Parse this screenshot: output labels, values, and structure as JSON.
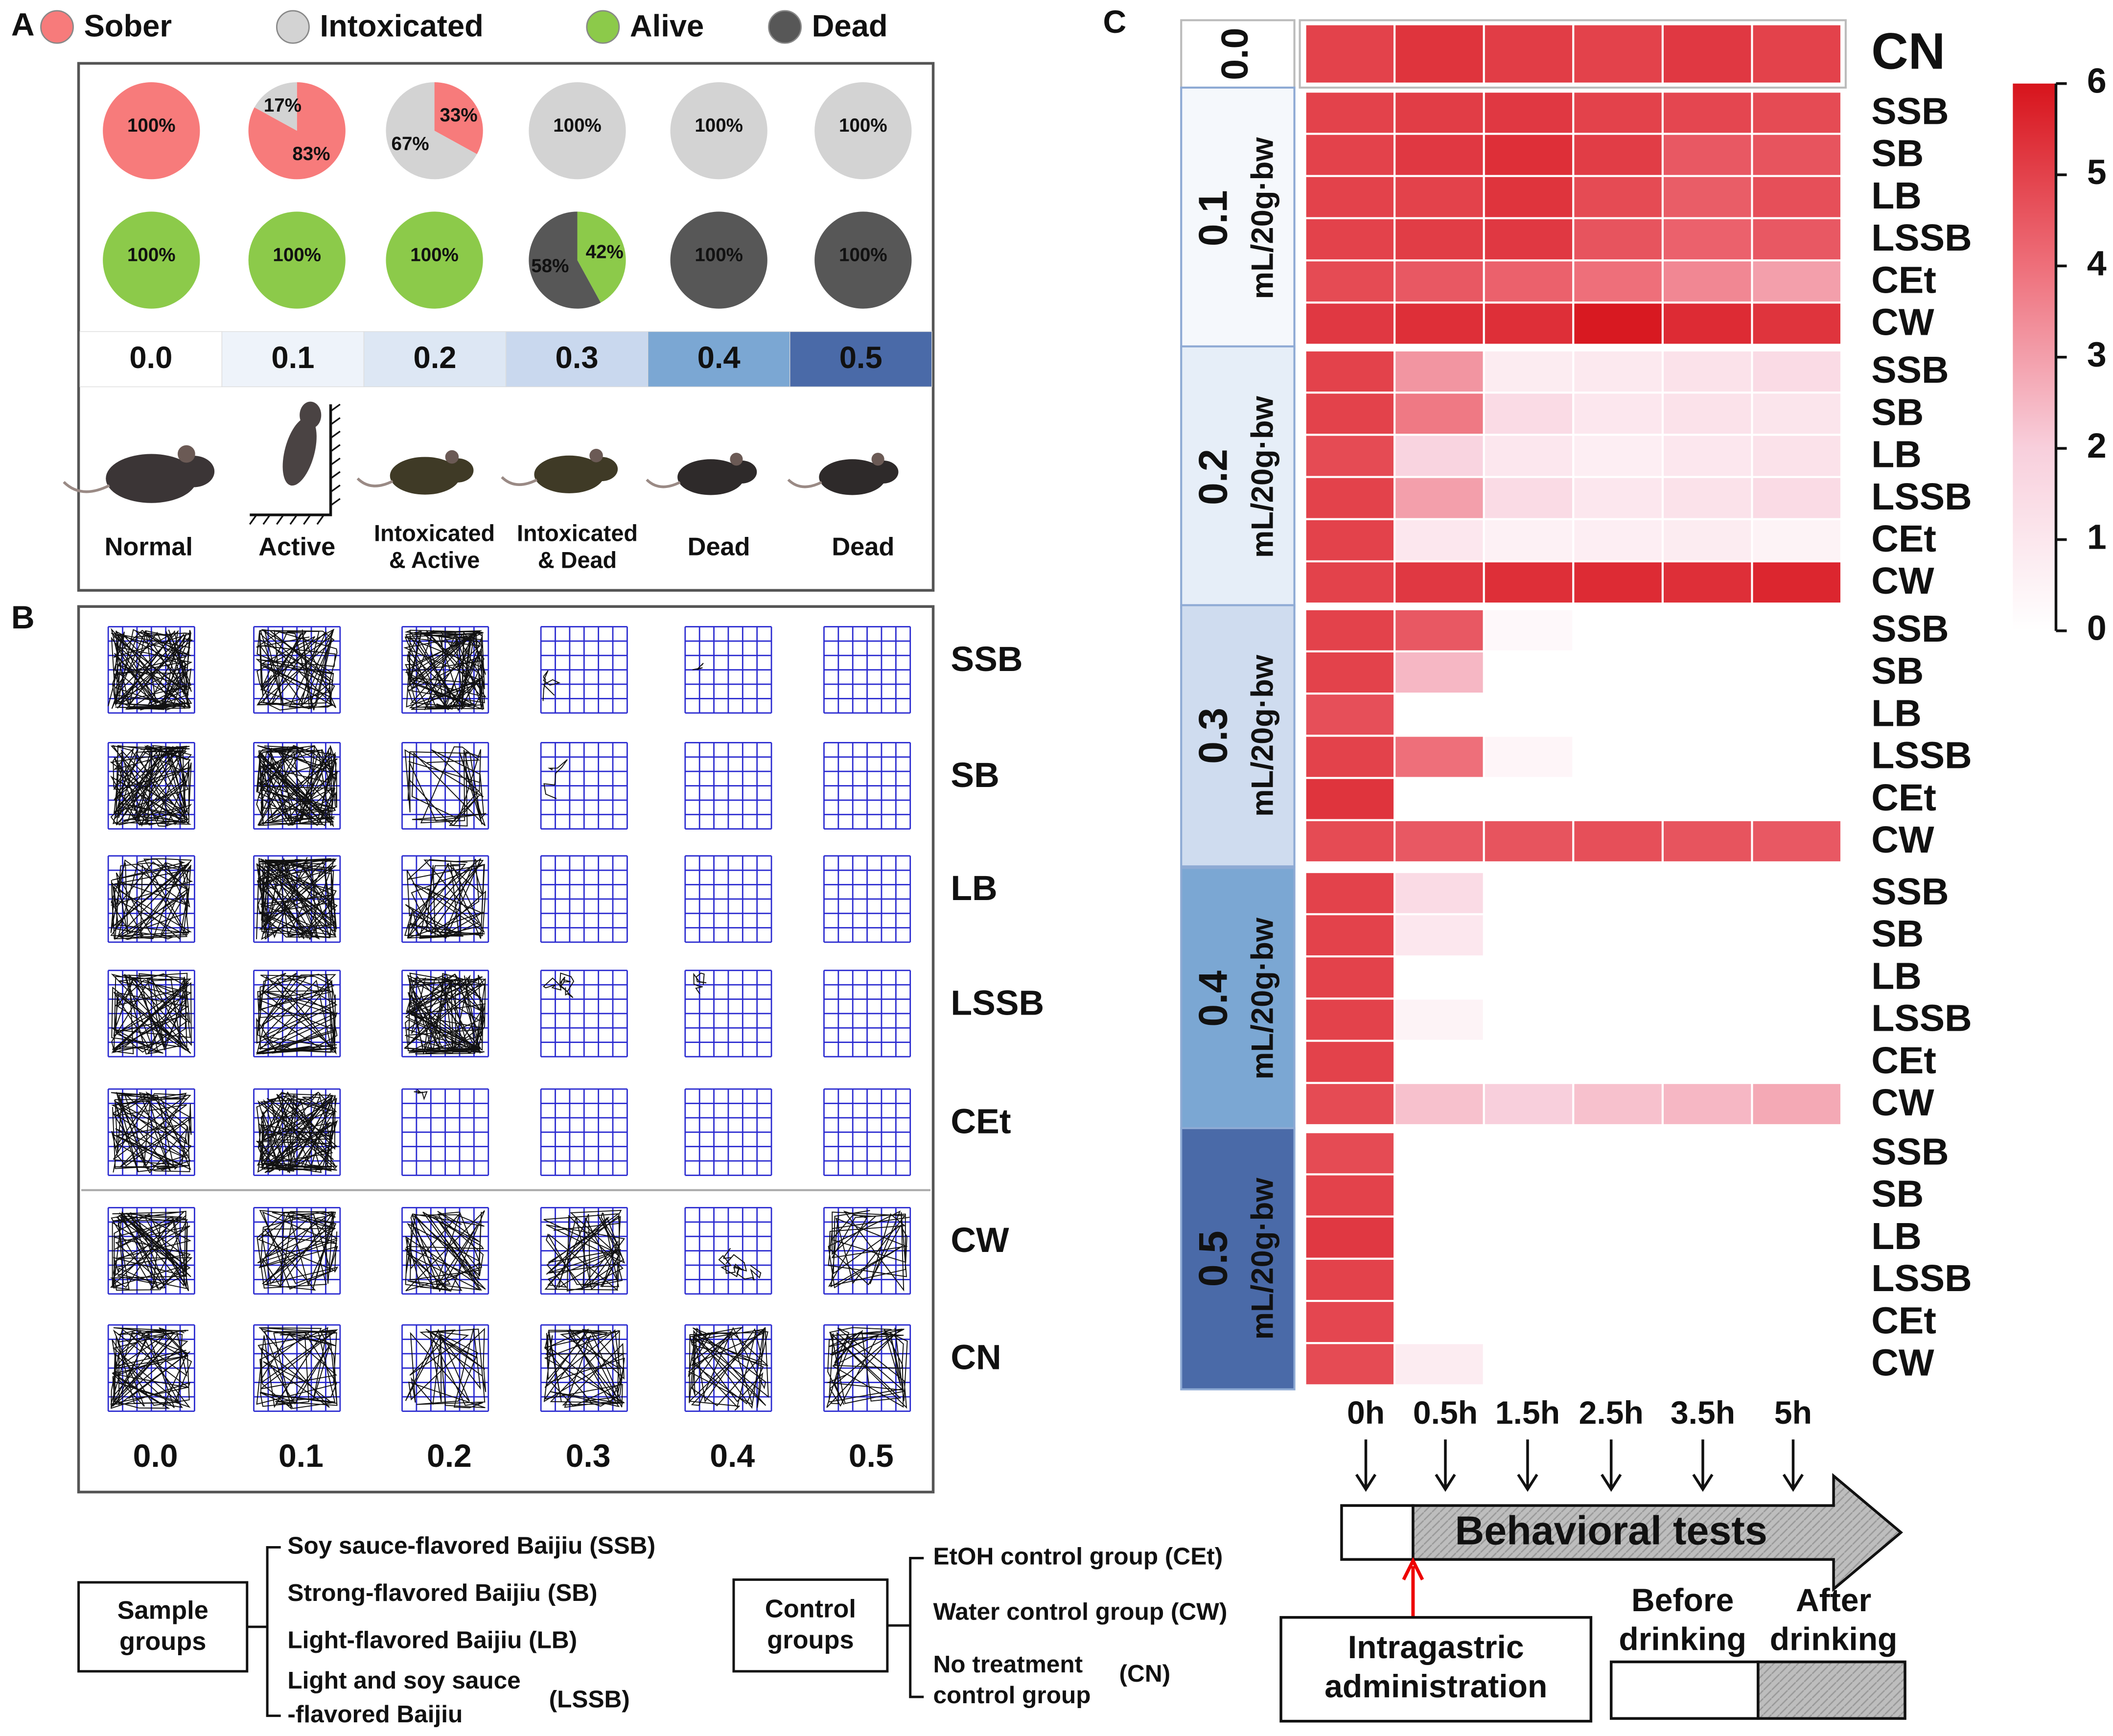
{
  "panel_a": {
    "label": "A",
    "legend": [
      {
        "label": "Sober",
        "color": "#f77b7b"
      },
      {
        "label": "Intoxicated",
        "color": "#d3d3d3"
      },
      {
        "label": "Alive",
        "color": "#8cca4a"
      },
      {
        "label": "Dead",
        "color": "#575757"
      }
    ],
    "pie_rows": [
      [
        [
          {
            "value": 100,
            "label": "100%",
            "color": "#f77b7b",
            "label_color": "#c00000"
          }
        ],
        [
          {
            "value": 83,
            "label": "83%",
            "color": "#f77b7b",
            "label_color": "#c00000"
          },
          {
            "value": 17,
            "label": "17%",
            "color": "#d3d3d3",
            "label_color": "#2e5597"
          }
        ],
        [
          {
            "value": 33,
            "label": "33%",
            "color": "#f77b7b",
            "label_color": "#c00000"
          },
          {
            "value": 67,
            "label": "67%",
            "color": "#d3d3d3",
            "label_color": "#2e5597"
          }
        ],
        [
          {
            "value": 100,
            "label": "100%",
            "color": "#d3d3d3",
            "label_color": "#2e5597"
          }
        ],
        [
          {
            "value": 100,
            "label": "100%",
            "color": "#d3d3d3",
            "label_color": "#2e5597"
          }
        ],
        [
          {
            "value": 100,
            "label": "100%",
            "color": "#d3d3d3",
            "label_color": "#2e5597"
          }
        ]
      ],
      [
        [
          {
            "value": 100,
            "label": "100%",
            "color": "#8cca4a",
            "label_color": "#333333"
          }
        ],
        [
          {
            "value": 100,
            "label": "100%",
            "color": "#8cca4a",
            "label_color": "#333333"
          }
        ],
        [
          {
            "value": 100,
            "label": "100%",
            "color": "#8cca4a",
            "label_color": "#333333"
          }
        ],
        [
          {
            "value": 42,
            "label": "42%",
            "color": "#8cca4a",
            "label_color": "#333333"
          },
          {
            "value": 58,
            "label": "58%",
            "color": "#575757",
            "label_color": "#ffffff"
          }
        ],
        [
          {
            "value": 100,
            "label": "100%",
            "color": "#575757",
            "label_color": "#ffffff"
          }
        ],
        [
          {
            "value": 100,
            "label": "100%",
            "color": "#575757",
            "label_color": "#ffffff"
          }
        ]
      ]
    ],
    "doses": [
      "0.0",
      "0.1",
      "0.2",
      "0.3",
      "0.4",
      "0.5"
    ],
    "dose_colors": [
      "#ffffff",
      "#eef3fa",
      "#dde7f4",
      "#c9d8ee",
      "#7ba7d3",
      "#4a6aa8"
    ],
    "animal_states": [
      [
        "Normal"
      ],
      [
        "Active"
      ],
      [
        "Intoxicated",
        "& Active"
      ],
      [
        "Intoxicated",
        "& Dead"
      ],
      [
        "Dead"
      ],
      [
        "Dead"
      ]
    ]
  },
  "panel_b": {
    "label": "B",
    "rows": [
      "SSB",
      "SB",
      "LB",
      "LSSB",
      "CEt",
      "CW",
      "CN"
    ],
    "doses": [
      "0.0",
      "0.1",
      "0.2",
      "0.3",
      "0.4",
      "0.5"
    ],
    "grid_color": "#2a2ad0"
  },
  "panel_c": {
    "label": "C",
    "times": [
      "0h",
      "0.5h",
      "1.5h",
      "2.5h",
      "3.5h",
      "5h"
    ],
    "groups": [
      {
        "dose": "0.0",
        "fill": "#ffffff",
        "rows": [
          {
            "name": "CN",
            "color": "#1f3864",
            "values": [
              5,
              5.3,
              5.1,
              5,
              5.2,
              5
            ]
          }
        ]
      },
      {
        "dose": "0.1",
        "unit": "mL/20g·bw",
        "fill": "#f5f8fc",
        "rows": [
          {
            "name": "SSB",
            "color": "#c00000",
            "values": [
              5,
              5.1,
              5.2,
              5,
              4.9,
              4.8
            ]
          },
          {
            "name": "SB",
            "color": "#c00000",
            "values": [
              5,
              5.2,
              5.4,
              5.1,
              4.5,
              4.6
            ]
          },
          {
            "name": "LB",
            "color": "#c00000",
            "values": [
              5,
              5,
              5.3,
              4.8,
              4.4,
              4.7
            ]
          },
          {
            "name": "LSSB",
            "color": "#c00000",
            "values": [
              5,
              5.1,
              5.2,
              4.6,
              4.3,
              4.5
            ]
          },
          {
            "name": "CEt",
            "color": "#1f3864",
            "values": [
              4.8,
              4.5,
              4.3,
              4,
              3.5,
              3
            ]
          },
          {
            "name": "CW",
            "color": "#1f3864",
            "values": [
              5.2,
              5.4,
              5.4,
              5.9,
              5.5,
              5.3
            ]
          }
        ]
      },
      {
        "dose": "0.2",
        "unit": "mL/20g·bw",
        "fill": "#e6eef8",
        "rows": [
          {
            "name": "SSB",
            "color": "#c00000",
            "values": [
              5,
              3.2,
              0.8,
              0.9,
              1.2,
              1.5
            ]
          },
          {
            "name": "SB",
            "color": "#c00000",
            "values": [
              5,
              3.8,
              1.5,
              1,
              1.2,
              1.1
            ]
          },
          {
            "name": "LB",
            "color": "#c00000",
            "values": [
              4.8,
              1.8,
              1,
              0.7,
              1,
              1.2
            ]
          },
          {
            "name": "LSSB",
            "color": "#c00000",
            "values": [
              5,
              3,
              1.5,
              1,
              1.2,
              1.5
            ]
          },
          {
            "name": "CEt",
            "color": "#1f3864",
            "values": [
              5,
              1,
              0.6,
              0.7,
              0.8,
              0.5
            ]
          },
          {
            "name": "CW",
            "color": "#1f3864",
            "values": [
              5,
              5.2,
              5.4,
              5.5,
              5.4,
              5.6
            ]
          }
        ]
      },
      {
        "dose": "0.3",
        "unit": "mL/20g·bw",
        "fill": "#cfdcef",
        "rows": [
          {
            "name": "SSB",
            "color": "#c00000",
            "values": [
              5,
              4.5,
              0.3,
              null,
              null,
              null
            ]
          },
          {
            "name": "SB",
            "color": "#c00000",
            "values": [
              5,
              2.5,
              null,
              null,
              null,
              null
            ]
          },
          {
            "name": "LB",
            "color": "#c00000",
            "values": [
              4.7,
              null,
              null,
              null,
              null,
              null
            ]
          },
          {
            "name": "LSSB",
            "color": "#c00000",
            "values": [
              5,
              4,
              0.4,
              null,
              null,
              null
            ]
          },
          {
            "name": "CEt",
            "color": "#1f3864",
            "values": [
              5.3,
              null,
              null,
              null,
              null,
              null
            ]
          },
          {
            "name": "CW",
            "color": "#1f3864",
            "values": [
              4.8,
              4.5,
              4.6,
              4.7,
              4.6,
              4.5
            ]
          }
        ]
      },
      {
        "dose": "0.4",
        "unit": "mL/20g·bw",
        "fill": "#7ba7d3",
        "rows": [
          {
            "name": "SSB",
            "color": "#c00000",
            "values": [
              5,
              1.5,
              null,
              null,
              null,
              null
            ]
          },
          {
            "name": "SB",
            "color": "#c00000",
            "values": [
              5,
              1,
              null,
              null,
              null,
              null
            ]
          },
          {
            "name": "LB",
            "color": "#c00000",
            "values": [
              5,
              null,
              null,
              null,
              null,
              null
            ]
          },
          {
            "name": "LSSB",
            "color": "#c00000",
            "values": [
              5,
              0.5,
              null,
              null,
              null,
              null
            ]
          },
          {
            "name": "CEt",
            "color": "#1f3864",
            "values": [
              5,
              null,
              null,
              null,
              null,
              null
            ]
          },
          {
            "name": "CW",
            "color": "#1f3864",
            "values": [
              4.8,
              2.3,
              2,
              2.3,
              2.5,
              2.8
            ]
          }
        ]
      },
      {
        "dose": "0.5",
        "unit": "mL/20g·bw",
        "fill": "#4a6aa8",
        "rows": [
          {
            "name": "SSB",
            "color": "#c00000",
            "values": [
              4.8,
              null,
              null,
              null,
              null,
              null
            ]
          },
          {
            "name": "SB",
            "color": "#c00000",
            "values": [
              5,
              null,
              null,
              null,
              null,
              null
            ]
          },
          {
            "name": "LB",
            "color": "#c00000",
            "values": [
              5.2,
              null,
              null,
              null,
              null,
              null
            ]
          },
          {
            "name": "LSSB",
            "color": "#c00000",
            "values": [
              5,
              null,
              null,
              null,
              null,
              null
            ]
          },
          {
            "name": "CEt",
            "color": "#1f3864",
            "values": [
              4.9,
              null,
              null,
              null,
              null,
              null
            ]
          },
          {
            "name": "CW",
            "color": "#1f3864",
            "values": [
              4.8,
              0.8,
              null,
              null,
              null,
              null
            ]
          }
        ]
      }
    ],
    "colorbar": {
      "lim": [
        0,
        6
      ],
      "ticks": [
        0,
        1,
        2,
        3,
        4,
        5,
        6
      ],
      "colors": [
        "#ffffff",
        "#f8cfdc",
        "#ee6f7a",
        "#d7141c"
      ]
    }
  },
  "timeline": {
    "label": "Behavioral tests",
    "injection": [
      "Intragastric",
      "administration"
    ],
    "before": [
      "Before",
      "drinking"
    ],
    "after": [
      "After",
      "drinking"
    ]
  },
  "legend": {
    "sample": {
      "title": [
        "Sample",
        "groups"
      ],
      "items": [
        {
          "lines": [
            "Soy sauce-flavored Baijiu (SSB)"
          ]
        },
        {
          "lines": [
            "Strong-flavored Baijiu (SB)"
          ]
        },
        {
          "lines": [
            "Light-flavored Baijiu (LB)"
          ]
        },
        {
          "lines": [
            "Light and soy sauce",
            "-flavored Baijiu"
          ],
          "abbr": "(LSSB)"
        }
      ]
    },
    "control": {
      "title": [
        "Control",
        "groups"
      ],
      "items": [
        {
          "lines": [
            "EtOH control group (CEt)"
          ]
        },
        {
          "lines": [
            "Water control group (CW)"
          ]
        },
        {
          "lines": [
            "No treatment",
            "control group"
          ],
          "abbr": "(CN)"
        }
      ]
    }
  }
}
